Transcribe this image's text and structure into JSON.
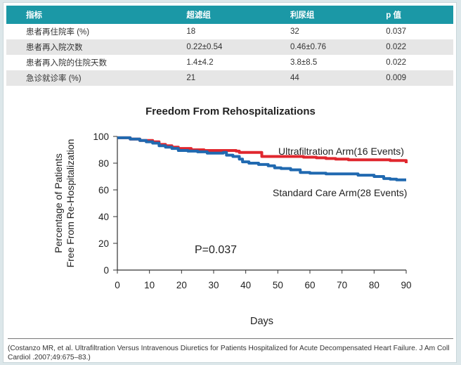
{
  "table": {
    "headers": [
      "指标",
      "超滤组",
      "利尿组",
      "p 值"
    ],
    "rows": [
      [
        "患者再住院率 (%)",
        "18",
        "32",
        "0.037"
      ],
      [
        "患者再入院次数",
        "0.22±0.54",
        "0.46±0.76",
        "0.022"
      ],
      [
        "患者再入院的住院天数",
        "1.4±4.2",
        "3.8±8.5",
        "0.022"
      ],
      [
        "急诊就诊率 (%)",
        "21",
        "44",
        "0.009"
      ]
    ]
  },
  "chart_data": {
    "type": "line",
    "title": "Freedom From Rehospitalizations",
    "xlabel": "Days",
    "ylabel": [
      "Percentage of Patients",
      "Free From Re-Hospitalization"
    ],
    "xlim": [
      0,
      90
    ],
    "ylim": [
      0,
      100
    ],
    "xticks": [
      0,
      10,
      20,
      30,
      40,
      50,
      60,
      70,
      80,
      90
    ],
    "yticks": [
      0,
      20,
      40,
      60,
      80,
      100
    ],
    "series": [
      {
        "name": "Ultrafiltration Arm(16 Events)",
        "color": "#e0272e",
        "x": [
          0,
          4,
          7,
          9,
          11,
          13,
          15,
          17,
          19,
          21,
          23,
          25,
          27,
          30,
          33,
          35,
          37,
          38,
          40,
          42,
          45,
          47,
          50,
          55,
          58,
          62,
          65,
          68,
          72,
          75,
          80,
          85,
          88,
          90
        ],
        "y": [
          99,
          98,
          97,
          97,
          96,
          94,
          93,
          92,
          91,
          91,
          90,
          90,
          89.5,
          89.5,
          89.5,
          89.5,
          89,
          88,
          88,
          88,
          85,
          85,
          85,
          85,
          84.5,
          84,
          83.5,
          83,
          82.5,
          82.5,
          82.5,
          82,
          82,
          80
        ]
      },
      {
        "name": "Standard Care Arm(28 Events)",
        "color": "#2069b0",
        "x": [
          0,
          4,
          7,
          9,
          11,
          13,
          15,
          17,
          19,
          22,
          25,
          28,
          30,
          33,
          34,
          36,
          38,
          39,
          41,
          44,
          47,
          49,
          51,
          54,
          57,
          60,
          65,
          70,
          75,
          80,
          83,
          85,
          87,
          90
        ],
        "y": [
          99,
          98,
          97,
          96,
          95,
          93,
          92,
          91,
          89.5,
          89,
          88.5,
          87.5,
          87.5,
          88,
          86,
          85,
          83,
          81,
          80,
          79,
          78,
          76.5,
          76,
          75,
          73,
          72.5,
          72,
          72,
          71,
          70,
          68.5,
          68,
          67.5,
          67.5
        ]
      }
    ],
    "annotations": [
      "P=0.037"
    ]
  },
  "citation": "(Costanzo MR, et al. Ultrafiltration Versus Intravenous Diuretics for Patients Hospitalized for Acute Decompensated Heart Failure. J Am Coll Cardiol .2007;49:675–83.)"
}
